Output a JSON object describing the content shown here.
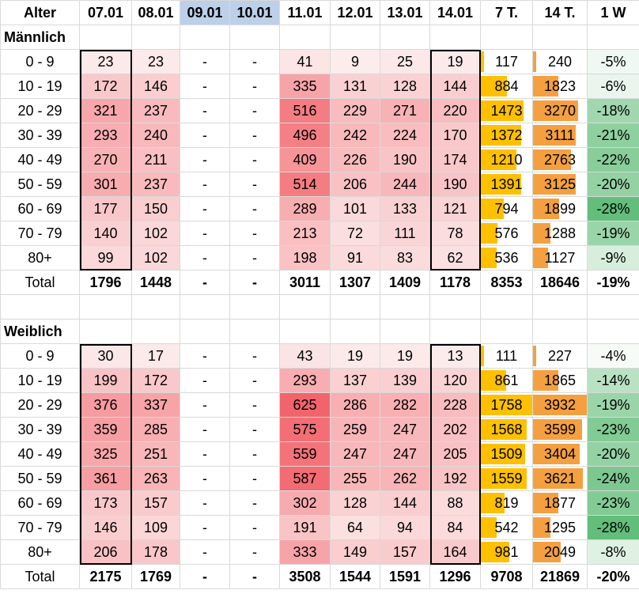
{
  "chart_data": {
    "type": "table",
    "columns": [
      "Alter",
      "07.01",
      "08.01",
      "09.01",
      "10.01",
      "11.01",
      "12.01",
      "13.01",
      "14.01",
      "7 T.",
      "14 T.",
      "1 W"
    ],
    "highlighted_columns": [
      "09.01",
      "10.01"
    ],
    "missing_value": "-",
    "sections": [
      {
        "name": "Männlich",
        "rows": [
          {
            "age": "0 - 9",
            "values": [
              23,
              23,
              "-",
              "-",
              41,
              9,
              25,
              19
            ],
            "t7": 117,
            "t14": 240,
            "w1": "-5%"
          },
          {
            "age": "10 - 19",
            "values": [
              172,
              146,
              "-",
              "-",
              335,
              131,
              128,
              144
            ],
            "t7": 884,
            "t14": 1823,
            "w1": "-6%"
          },
          {
            "age": "20 - 29",
            "values": [
              321,
              237,
              "-",
              "-",
              516,
              229,
              271,
              220
            ],
            "t7": 1473,
            "t14": 3270,
            "w1": "-18%"
          },
          {
            "age": "30 - 39",
            "values": [
              293,
              240,
              "-",
              "-",
              496,
              242,
              224,
              170
            ],
            "t7": 1372,
            "t14": 3111,
            "w1": "-21%"
          },
          {
            "age": "40 - 49",
            "values": [
              270,
              211,
              "-",
              "-",
              409,
              226,
              190,
              174
            ],
            "t7": 1210,
            "t14": 2763,
            "w1": "-22%"
          },
          {
            "age": "50 - 59",
            "values": [
              301,
              237,
              "-",
              "-",
              514,
              206,
              244,
              190
            ],
            "t7": 1391,
            "t14": 3125,
            "w1": "-20%"
          },
          {
            "age": "60 - 69",
            "values": [
              177,
              150,
              "-",
              "-",
              289,
              101,
              133,
              121
            ],
            "t7": 794,
            "t14": 1899,
            "w1": "-28%"
          },
          {
            "age": "70 - 79",
            "values": [
              140,
              102,
              "-",
              "-",
              213,
              72,
              111,
              78
            ],
            "t7": 576,
            "t14": 1288,
            "w1": "-19%"
          },
          {
            "age": "80+",
            "values": [
              99,
              102,
              "-",
              "-",
              198,
              91,
              83,
              62
            ],
            "t7": 536,
            "t14": 1127,
            "w1": "-9%"
          }
        ],
        "total": {
          "label": "Total",
          "values": [
            1796,
            1448,
            "-",
            "-",
            3011,
            1307,
            1409,
            1178
          ],
          "t7": 8353,
          "t14": 18646,
          "w1": "-19%"
        }
      },
      {
        "name": "Weiblich",
        "rows": [
          {
            "age": "0 - 9",
            "values": [
              30,
              17,
              "-",
              "-",
              43,
              19,
              19,
              13
            ],
            "t7": 111,
            "t14": 227,
            "w1": "-4%"
          },
          {
            "age": "10 - 19",
            "values": [
              199,
              172,
              "-",
              "-",
              293,
              137,
              139,
              120
            ],
            "t7": 861,
            "t14": 1865,
            "w1": "-14%"
          },
          {
            "age": "20 - 29",
            "values": [
              376,
              337,
              "-",
              "-",
              625,
              286,
              282,
              228
            ],
            "t7": 1758,
            "t14": 3932,
            "w1": "-19%"
          },
          {
            "age": "30 - 39",
            "values": [
              359,
              285,
              "-",
              "-",
              575,
              259,
              247,
              202
            ],
            "t7": 1568,
            "t14": 3599,
            "w1": "-23%"
          },
          {
            "age": "40 - 49",
            "values": [
              325,
              251,
              "-",
              "-",
              559,
              247,
              247,
              205
            ],
            "t7": 1509,
            "t14": 3404,
            "w1": "-20%"
          },
          {
            "age": "50 - 59",
            "values": [
              361,
              263,
              "-",
              "-",
              587,
              255,
              262,
              192
            ],
            "t7": 1559,
            "t14": 3621,
            "w1": "-24%"
          },
          {
            "age": "60 - 69",
            "values": [
              173,
              157,
              "-",
              "-",
              302,
              128,
              144,
              88
            ],
            "t7": 819,
            "t14": 1877,
            "w1": "-23%"
          },
          {
            "age": "70 - 79",
            "values": [
              146,
              109,
              "-",
              "-",
              191,
              64,
              94,
              84
            ],
            "t7": 542,
            "t14": 1295,
            "w1": "-28%"
          },
          {
            "age": "80+",
            "values": [
              206,
              178,
              "-",
              "-",
              333,
              149,
              157,
              164
            ],
            "t7": 981,
            "t14": 2049,
            "w1": "-8%"
          }
        ],
        "total": {
          "label": "Total",
          "values": [
            2175,
            1769,
            "-",
            "-",
            3508,
            1544,
            1591,
            1296
          ],
          "t7": 9708,
          "t14": 21869,
          "w1": "-20%"
        }
      }
    ],
    "colors": {
      "heat_low": "#fcecec",
      "heat_high": "#f2646b",
      "bar_7t": "#ffc000",
      "bar_14t": "#f4a040",
      "pct_low": "#f6fbf7",
      "pct_high": "#63be7b",
      "header_gap": "#bdd0ea",
      "grid": "#d9d9d9",
      "box_border": "#000000"
    }
  }
}
